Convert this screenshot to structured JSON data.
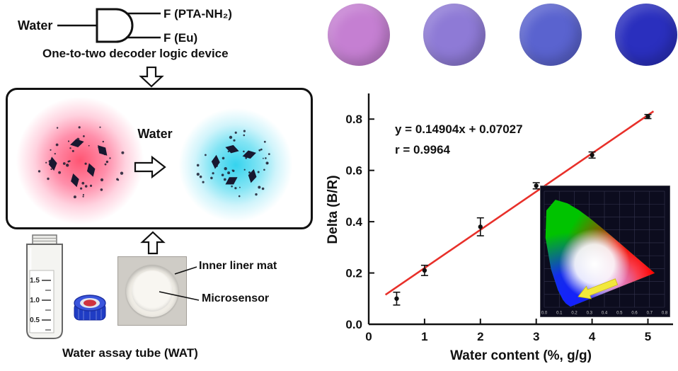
{
  "decoder": {
    "input": "Water",
    "outputs": [
      "F (PTA-NH₂)",
      "F (Eu)"
    ],
    "caption": "One-to-two decoder logic device"
  },
  "transition": {
    "water_label": "Water"
  },
  "wat": {
    "graduations": [
      "1.5",
      "1.0",
      "0.5"
    ],
    "inner_liner_label": "Inner liner mat",
    "microsensor_label": "Microsensor",
    "caption": "Water assay tube (WAT)"
  },
  "sensor_dots": {
    "colors": [
      "#c57fd2",
      "#8e7ad6",
      "#5a63cf",
      "#2a2fbe"
    ]
  },
  "chart_data": {
    "type": "scatter",
    "x": [
      0.5,
      1,
      2,
      3,
      4,
      5
    ],
    "y": [
      0.1,
      0.21,
      0.38,
      0.54,
      0.66,
      0.81
    ],
    "y_err": [
      0.025,
      0.02,
      0.035,
      0.012,
      0.012,
      0.008
    ],
    "fit_line": {
      "slope": 0.14904,
      "intercept": 0.07027,
      "x_start": 0.3,
      "x_end": 5.1,
      "color": "#e8302a"
    },
    "annotation": [
      "y = 0.14904x + 0.07027",
      "r = 0.9964"
    ],
    "xlabel": "Water content (%, g/g)",
    "ylabel": "Delta (B/R)",
    "xlim": [
      0,
      5.45
    ],
    "ylim": [
      0,
      0.9
    ],
    "xtick_values": [
      0,
      1,
      2,
      3,
      4,
      5
    ],
    "xtick_labels": [
      "0",
      "1",
      "2",
      "3",
      "4",
      "5"
    ],
    "ytick_values": [
      0,
      0.2,
      0.4,
      0.6,
      0.8
    ],
    "ytick_labels": [
      "0.0",
      "0.2",
      "0.4",
      "0.6",
      "0.8"
    ],
    "point_color": "#111111",
    "grid": false,
    "inset": {
      "type": "cie_chromaticity",
      "xtick_labels": [
        "0.0",
        "0.1",
        "0.2",
        "0.3",
        "0.4",
        "0.5",
        "0.6",
        "0.7",
        "0.8"
      ]
    }
  }
}
